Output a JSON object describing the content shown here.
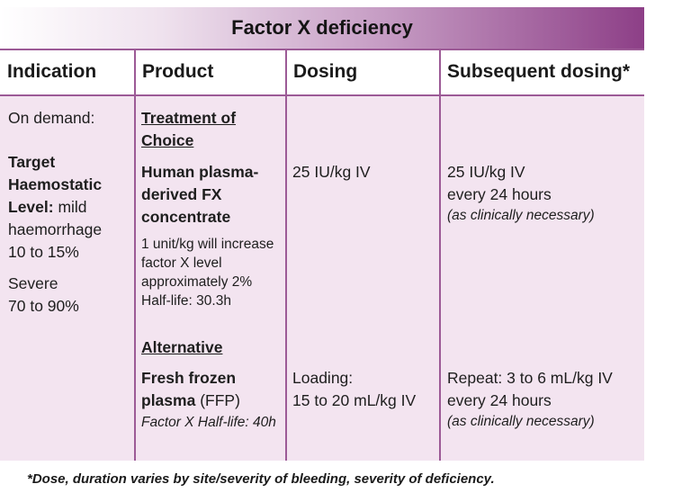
{
  "title": "Factor X deficiency",
  "columns": [
    "Indication",
    "Product",
    "Dosing",
    "Subsequent dosing*"
  ],
  "indication": {
    "on_demand": "On demand:",
    "target_label": "Target Haemostatic Level:",
    "mild": "mild haemorrhage",
    "mild_range": "10 to 15%",
    "severe": "Severe",
    "severe_range": "70 to 90%"
  },
  "product": {
    "choice_heading": "Treatment of Choice",
    "choice_name": "Human plasma-derived FX concentrate",
    "choice_note": "1 unit/kg will increase factor X level approximately 2%",
    "choice_halflife": "Half-life: 30.3h",
    "alt_heading": "Alternative",
    "alt_name": "Fresh frozen plasma",
    "alt_abbr": "(FFP)",
    "alt_halflife": "Factor X Half-life: 40h"
  },
  "dosing": {
    "choice": "25 IU/kg IV",
    "alt_label": "Loading:",
    "alt_value": "15 to 20 mL/kg IV"
  },
  "subsequent": {
    "choice_dose": "25 IU/kg IV",
    "choice_freq": "every 24 hours",
    "choice_note": "(as clinically necessary)",
    "alt_dose": "Repeat: 3 to 6 mL/kg IV",
    "alt_freq": "every 24 hours",
    "alt_note": "(as clinically necessary)"
  },
  "footnote": "*Dose, duration varies by site/severity of bleeding, severity of deficiency."
}
